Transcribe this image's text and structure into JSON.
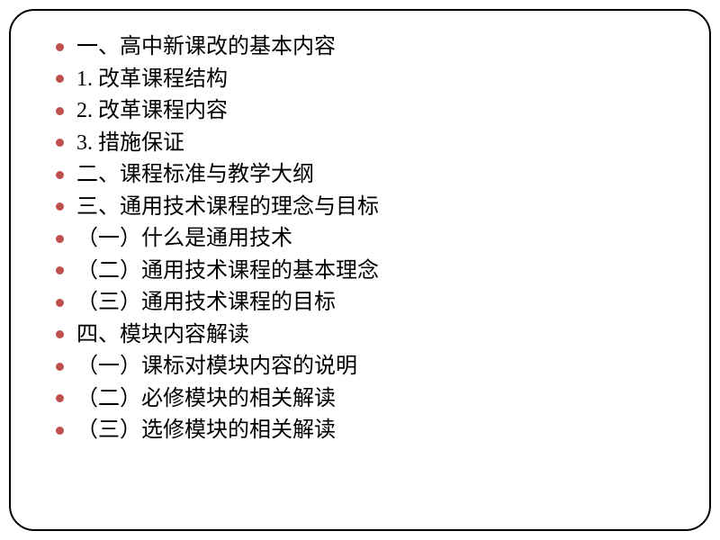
{
  "slide": {
    "border_color": "#000000",
    "border_radius": 28,
    "background_color": "#ffffff",
    "bullet_color": "#c0504d",
    "text_color": "#000000",
    "font_size": 24,
    "items": [
      "一、高中新课改的基本内容",
      "1. 改革课程结构",
      "2. 改革课程内容",
      "3. 措施保证",
      "二、课程标准与教学大纲",
      "三、通用技术课程的理念与目标",
      "（一）什么是通用技术",
      "（二）通用技术课程的基本理念",
      "（三）通用技术课程的目标",
      "四、模块内容解读",
      "（一）课标对模块内容的说明",
      "（二）必修模块的相关解读",
      "（三）选修模块的相关解读"
    ]
  }
}
